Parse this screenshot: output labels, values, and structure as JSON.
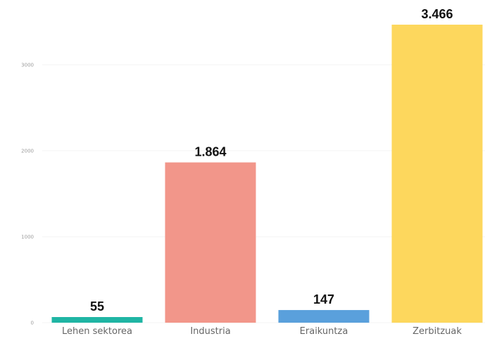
{
  "chart_data": {
    "type": "bar",
    "categories": [
      "Lehen sektorea",
      "Industria",
      "Eraikuntza",
      "Zerbitzuak"
    ],
    "values": [
      55,
      1864,
      147,
      3466
    ],
    "value_labels": [
      "55",
      "1.864",
      "147",
      "3.466"
    ],
    "colors": [
      "#1fb5a4",
      "#f2968a",
      "#5aa0dc",
      "#fdd75d"
    ],
    "yticks": [
      0,
      1000,
      2000,
      3000
    ],
    "ylim": [
      0,
      3466
    ],
    "grid": true,
    "title": "",
    "xlabel": "",
    "ylabel": ""
  }
}
